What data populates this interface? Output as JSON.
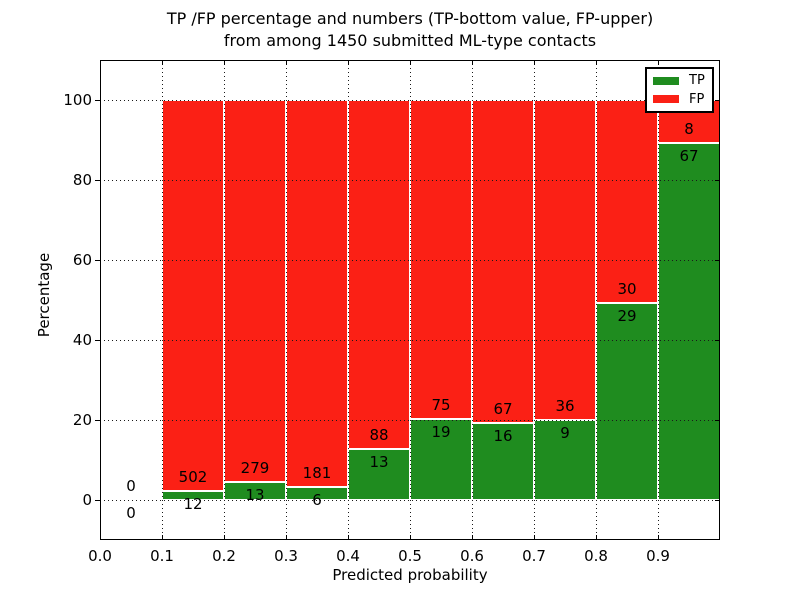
{
  "figure": {
    "title_line1": "TP /FP percentage and numbers (TP-bottom value, FP-upper)",
    "title_line2": "from among 1450 submitted ML-type contacts",
    "xlabel": "Predicted probability",
    "ylabel": "Percentage"
  },
  "legend": {
    "position": "upper right",
    "items": [
      {
        "label": "TP",
        "color": "#1f8c1f"
      },
      {
        "label": "FP",
        "color": "#fb2015"
      }
    ]
  },
  "chart_data": {
    "type": "bar",
    "stacked": true,
    "normalized_to_percent": true,
    "title": "TP /FP percentage and numbers (TP-bottom value, FP-upper) from among 1450 submitted ML-type contacts",
    "xlabel": "Predicted probability",
    "ylabel": "Percentage",
    "xlim": [
      0.0,
      1.0
    ],
    "ylim": [
      -10,
      110
    ],
    "xticks": [
      0.0,
      0.1,
      0.2,
      0.3,
      0.4,
      0.5,
      0.6,
      0.7,
      0.8,
      0.9
    ],
    "xtick_labels": [
      "0.0",
      "0.1",
      "0.2",
      "0.3",
      "0.4",
      "0.5",
      "0.6",
      "0.7",
      "0.8",
      "0.9"
    ],
    "yticks": [
      0,
      20,
      40,
      60,
      80,
      100
    ],
    "grid": "dotted",
    "total_contacts": 1450,
    "bin_width": 0.1,
    "series": [
      {
        "name": "TP",
        "color": "#1f8c1f",
        "counts": [
          0,
          12,
          13,
          6,
          13,
          19,
          16,
          9,
          29,
          67
        ]
      },
      {
        "name": "FP",
        "color": "#fb2015",
        "counts": [
          0,
          502,
          279,
          181,
          88,
          75,
          67,
          36,
          30,
          8
        ]
      }
    ],
    "bins": [
      {
        "range": [
          0.0,
          0.1
        ],
        "tp": 0,
        "fp": 0
      },
      {
        "range": [
          0.1,
          0.2
        ],
        "tp": 12,
        "fp": 502
      },
      {
        "range": [
          0.2,
          0.3
        ],
        "tp": 13,
        "fp": 279
      },
      {
        "range": [
          0.3,
          0.4
        ],
        "tp": 6,
        "fp": 181
      },
      {
        "range": [
          0.4,
          0.5
        ],
        "tp": 13,
        "fp": 88
      },
      {
        "range": [
          0.5,
          0.6
        ],
        "tp": 19,
        "fp": 75
      },
      {
        "range": [
          0.6,
          0.7
        ],
        "tp": 16,
        "fp": 67
      },
      {
        "range": [
          0.7,
          0.8
        ],
        "tp": 9,
        "fp": 36
      },
      {
        "range": [
          0.8,
          0.9
        ],
        "tp": 29,
        "fp": 30
      },
      {
        "range": [
          0.9,
          1.0
        ],
        "tp": 67,
        "fp": 8
      }
    ],
    "tp_percent_by_bin": [
      0,
      2.33,
      4.45,
      3.21,
      12.87,
      20.21,
      19.28,
      20.0,
      49.15,
      89.33
    ]
  }
}
